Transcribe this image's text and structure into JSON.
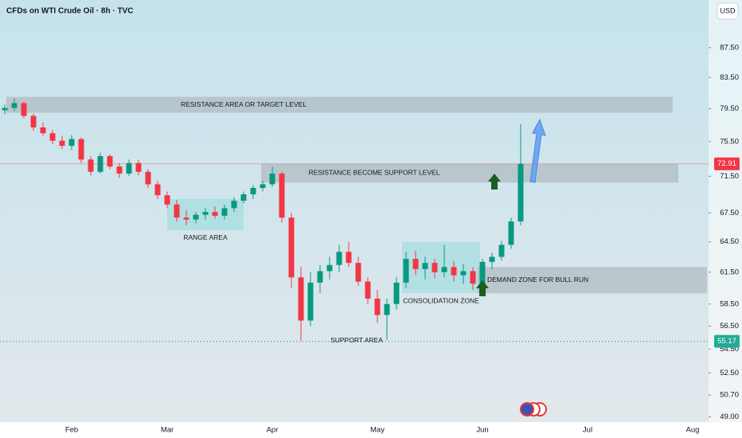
{
  "chart_data": {
    "type": "candlestick",
    "title": "CFDs on WTI Crude Oil · 8h · TVC",
    "currency": "USD",
    "log": true,
    "ylim": [
      48.6,
      94.3
    ],
    "yticks": [
      {
        "value": 87.5,
        "label": "87.50"
      },
      {
        "value": 83.5,
        "label": "83.50"
      },
      {
        "value": 79.5,
        "label": "79.50"
      },
      {
        "value": 75.5,
        "label": "75.50"
      },
      {
        "value": 71.5,
        "label": "71.50"
      },
      {
        "value": 67.5,
        "label": "67.50"
      },
      {
        "value": 64.5,
        "label": "64.50"
      },
      {
        "value": 61.5,
        "label": "61.50"
      },
      {
        "value": 58.5,
        "label": "58.50"
      },
      {
        "value": 56.5,
        "label": "56.50"
      },
      {
        "value": 54.5,
        "label": "54.50"
      },
      {
        "value": 52.5,
        "label": "52.50"
      },
      {
        "value": 50.7,
        "label": "50.70"
      },
      {
        "value": 49,
        "label": "49.00"
      }
    ],
    "categories": [
      null,
      null,
      null,
      null,
      null,
      null,
      null,
      "Feb",
      null,
      null,
      null,
      null,
      null,
      null,
      null,
      null,
      null,
      "Mar",
      null,
      null,
      null,
      null,
      null,
      null,
      null,
      null,
      null,
      null,
      "Apr",
      null,
      null,
      null,
      null,
      null,
      null,
      null,
      null,
      null,
      null,
      "May",
      null,
      null,
      null,
      null,
      null,
      null,
      null,
      null,
      null,
      null,
      "Jun",
      null,
      null,
      null,
      null,
      null,
      null,
      null,
      null,
      null,
      null,
      "Jul",
      null,
      null,
      null,
      null,
      null,
      null,
      null,
      null,
      null,
      null,
      "Aug"
    ],
    "open": [
      79.3,
      79.6,
      80.2,
      78.6,
      77.2,
      76.5,
      75.6,
      75.0,
      75.8,
      73.4,
      72.0,
      73.8,
      72.6,
      71.8,
      73.0,
      72.0,
      70.6,
      69.4,
      68.4,
      67.0,
      66.8,
      67.3,
      67.6,
      67.2,
      68.0,
      68.8,
      69.5,
      70.2,
      70.6,
      71.8,
      67.0,
      61.0,
      57.0,
      60.5,
      61.6,
      62.2,
      63.5,
      62.4,
      60.6,
      59.0,
      57.5,
      58.5,
      60.5,
      62.8,
      61.8,
      62.4,
      61.5,
      62.0,
      61.2,
      61.6,
      60.4,
      62.5,
      63.0,
      64.2,
      66.6,
      null,
      null,
      null,
      null,
      null,
      null,
      null,
      null,
      null,
      null,
      null,
      null,
      null,
      null,
      null,
      null,
      null,
      null
    ],
    "high": [
      80.0,
      80.8,
      80.4,
      78.9,
      77.8,
      76.9,
      76.2,
      76.3,
      76.0,
      73.8,
      74.2,
      74.0,
      73.0,
      73.4,
      73.4,
      72.3,
      71.0,
      69.8,
      68.9,
      67.8,
      67.6,
      68.0,
      68.2,
      68.4,
      69.2,
      69.8,
      70.5,
      71.0,
      72.6,
      72.0,
      67.5,
      62.0,
      61.5,
      62.2,
      63.0,
      64.2,
      64.5,
      63.0,
      61.0,
      59.8,
      59.0,
      61.0,
      63.5,
      63.6,
      63.0,
      62.8,
      64.2,
      62.6,
      62.3,
      62.0,
      62.8,
      63.4,
      64.6,
      67.0,
      77.6,
      null,
      null,
      null,
      null,
      null,
      null,
      null,
      null,
      null,
      null,
      null,
      null,
      null,
      null,
      null,
      null,
      null,
      null
    ],
    "low": [
      78.8,
      79.2,
      78.3,
      76.8,
      76.2,
      75.2,
      74.6,
      74.5,
      73.0,
      71.6,
      71.8,
      72.3,
      71.3,
      71.5,
      71.6,
      70.2,
      69.0,
      68.0,
      66.6,
      66.2,
      66.4,
      66.8,
      66.9,
      66.8,
      67.6,
      68.5,
      69.0,
      69.8,
      70.3,
      66.5,
      60.0,
      55.2,
      56.5,
      59.5,
      60.8,
      61.5,
      62.0,
      60.2,
      58.5,
      56.8,
      55.3,
      58.0,
      60.0,
      61.2,
      60.8,
      60.9,
      61.0,
      60.6,
      60.4,
      59.8,
      60.0,
      61.8,
      62.6,
      63.8,
      66.2,
      null,
      null,
      null,
      null,
      null,
      null,
      null,
      null,
      null,
      null,
      null,
      null,
      null,
      null,
      null,
      null,
      null,
      null
    ],
    "close": [
      79.6,
      80.2,
      78.6,
      77.2,
      76.5,
      75.6,
      75.0,
      75.8,
      73.4,
      72.0,
      73.8,
      72.6,
      71.8,
      73.0,
      72.0,
      70.6,
      69.4,
      68.4,
      67.0,
      66.8,
      67.3,
      67.6,
      67.2,
      68.0,
      68.8,
      69.5,
      70.2,
      70.6,
      71.8,
      67.0,
      61.0,
      57.0,
      60.5,
      61.6,
      62.2,
      63.5,
      62.4,
      60.6,
      59.0,
      57.5,
      58.5,
      60.5,
      62.8,
      61.8,
      62.4,
      61.5,
      62.0,
      61.2,
      61.6,
      60.4,
      62.5,
      63.0,
      64.2,
      66.6,
      72.91,
      null,
      null,
      null,
      null,
      null,
      null,
      null,
      null,
      null,
      null,
      null,
      null,
      null,
      null,
      null,
      null,
      null,
      null
    ],
    "up_color": "#089981",
    "down_color": "#f23645",
    "last_price": {
      "value": 72.91,
      "label": "72.91",
      "color": "#f23645"
    },
    "support_price": {
      "value": 55.17,
      "label": "55.17",
      "color": "#22ab94"
    },
    "zones": [
      {
        "text": "RESISTANCE AREA OR TARGET LEVEL",
        "low": 79.0,
        "high": 81.0,
        "color": "#b0bcc2"
      },
      {
        "text": "RESISTANCE BECOME SUPPORT LEVEL",
        "low": 70.8,
        "high": 72.9,
        "color": "#b0bcc2"
      },
      {
        "text": "RANGE AREA",
        "low": 65.7,
        "high": 69.0,
        "color": "#a6dde0"
      },
      {
        "text": "CONSOLIDATION ZONE",
        "low": 59.5,
        "high": 64.5,
        "color": "#a6dde0"
      },
      {
        "text": "DEMAND ZONE FOR BULL RUN",
        "low": 59.5,
        "high": 62.0,
        "color": "#b0bcc2"
      }
    ],
    "support_text": "SUPPORT AREA"
  }
}
